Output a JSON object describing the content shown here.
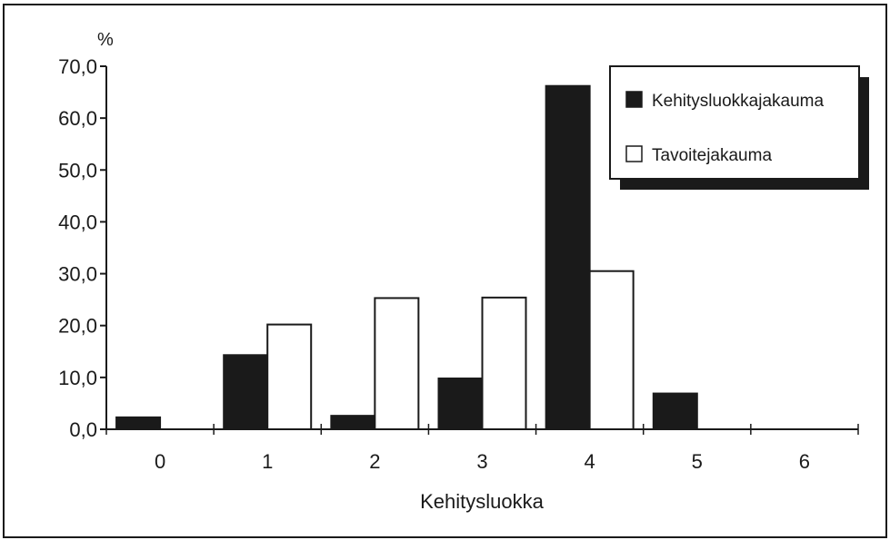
{
  "chart_data": {
    "type": "bar",
    "title": "",
    "xlabel": "Kehitysluokka",
    "ylabel": "%",
    "ylim": [
      0,
      70
    ],
    "ytick_labels": [
      "0,0",
      "10,0",
      "20,0",
      "30,0",
      "40,0",
      "50,0",
      "60,0",
      "70,0"
    ],
    "categories": [
      "0",
      "1",
      "2",
      "3",
      "4",
      "5",
      "6"
    ],
    "series": [
      {
        "name": "Kehitysluokkajakauma",
        "values": [
          2.3,
          14.3,
          2.6,
          9.8,
          66.2,
          6.9,
          0
        ]
      },
      {
        "name": "Tavoitejakauma",
        "values": [
          0,
          20.2,
          25.3,
          25.4,
          30.5,
          0,
          0
        ]
      }
    ],
    "legend_position": "top-right",
    "grid": false,
    "colors": {
      "series_0": "#1a1a1a",
      "series_1": "#ffffff"
    }
  }
}
